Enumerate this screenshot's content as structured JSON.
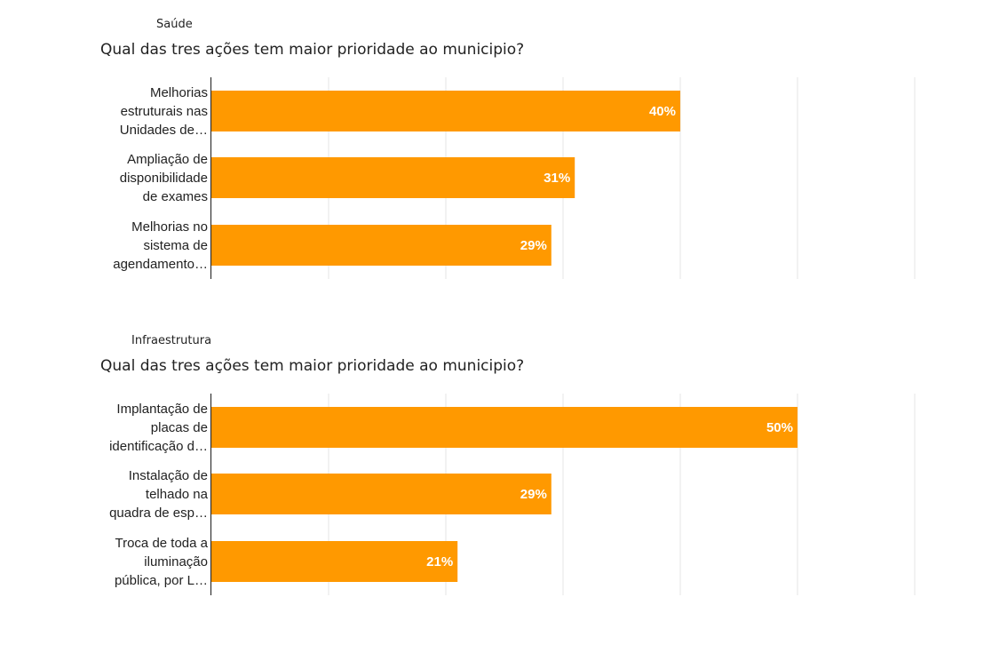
{
  "chart_data": [
    {
      "type": "bar",
      "orientation": "horizontal",
      "section": "Saúde",
      "title": "Qual das tres ações tem maior prioridade ao municipio?",
      "categories": [
        [
          "Melhorias",
          "estruturais nas",
          "Unidades de…"
        ],
        [
          "Ampliação de",
          "disponibilidade",
          "de exames"
        ],
        [
          "Melhorias no",
          "sistema de",
          "agendamento…"
        ]
      ],
      "values": [
        40,
        31,
        29
      ],
      "value_labels": [
        "40%",
        "31%",
        "29%"
      ],
      "xlim": [
        0,
        60
      ],
      "grid": true,
      "bar_color": "#ff9900"
    },
    {
      "type": "bar",
      "orientation": "horizontal",
      "section": "Infraestrutura",
      "title": "Qual das tres ações tem maior prioridade ao municipio?",
      "categories": [
        [
          "Implantação de",
          "placas de",
          "identificação d…"
        ],
        [
          "Instalação de",
          "telhado na",
          "quadra de esp…"
        ],
        [
          "Troca de toda a",
          "iluminação",
          "pública, por L…"
        ]
      ],
      "values": [
        50,
        29,
        21
      ],
      "value_labels": [
        "50%",
        "29%",
        "21%"
      ],
      "xlim": [
        0,
        60
      ],
      "grid": true,
      "bar_color": "#ff9900"
    }
  ]
}
